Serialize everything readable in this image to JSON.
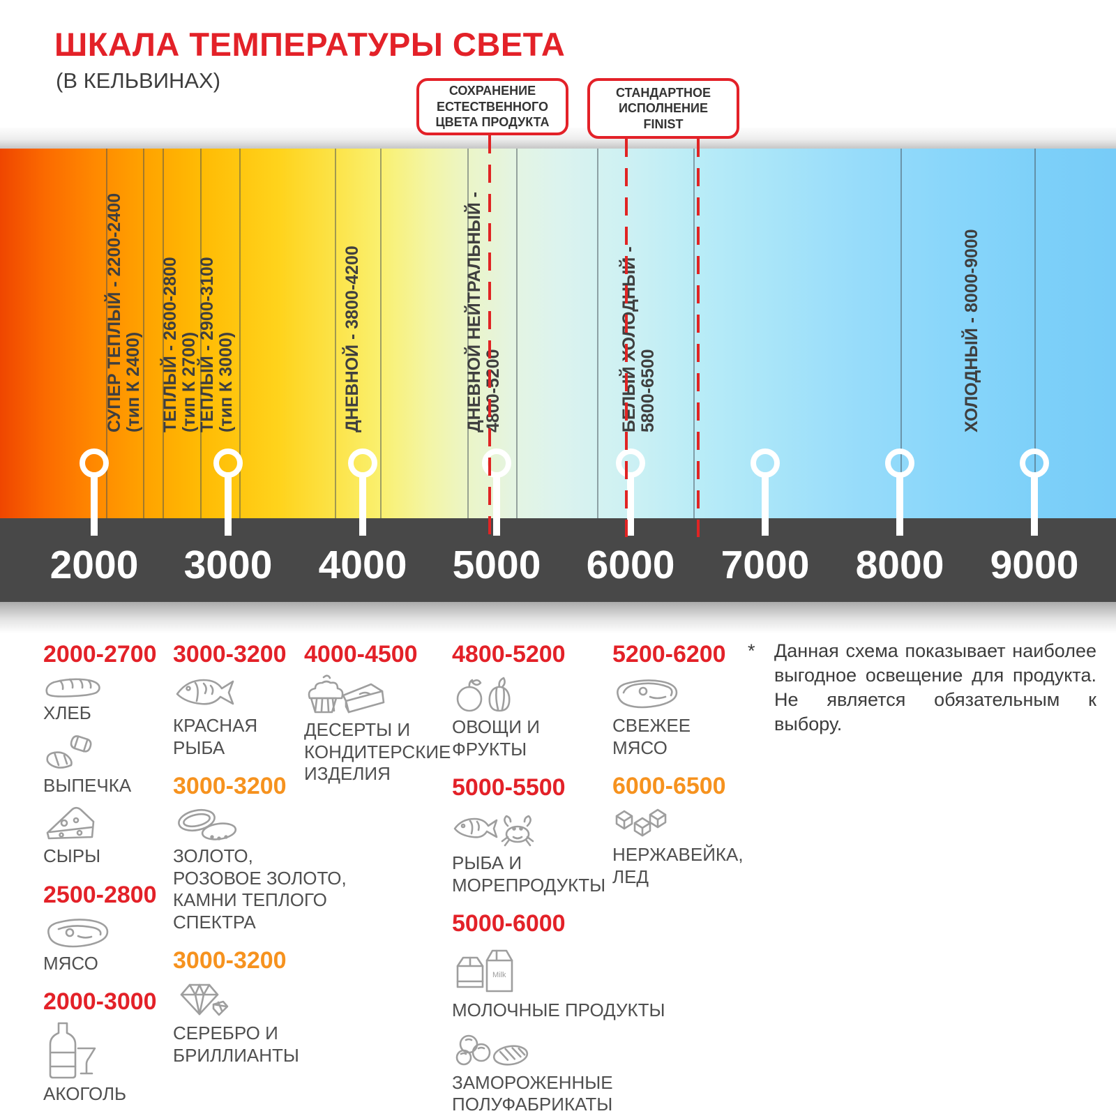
{
  "header": {
    "title": "ШКАЛА ТЕМПЕРАТУРЫ СВЕТА",
    "subtitle": "(В КЕЛЬВИНАХ)"
  },
  "callouts": [
    {
      "text": "СОХРАНЕНИЕ\nЕСТЕСТВЕННОГО\nЦВЕТА ПРОДУКТА"
    },
    {
      "text": "СТАНДАРТНОЕ\nИСПОЛНЕНИЕ\nFINIST"
    }
  ],
  "scale": {
    "unit": "Кельвины",
    "ticks": [
      "2000",
      "3000",
      "4000",
      "5000",
      "6000",
      "7000",
      "8000",
      "9000"
    ],
    "zones": [
      {
        "name": "СУПЕР ТЕПЛЫЙ - 2200-2400",
        "type": "(тип К 2400)"
      },
      {
        "name": "ТЕПЛЫЙ - 2600-2800",
        "type": "(тип К 2700)"
      },
      {
        "name": "ТЕПЛЫЙ - 2900-3100",
        "type": "(тип К 3000)"
      },
      {
        "name": "ДНЕВНОЙ - 3800-4200",
        "type": ""
      },
      {
        "name": "ДНЕВНОЙ НЕЙТРАЛЬНЫЙ -",
        "type": "4800-5200"
      },
      {
        "name": "БЕЛЫЙ ХОЛОДНЫЙ -",
        "type": "5800-6500"
      },
      {
        "name": "ХОЛОДНЫЙ - 8000-9000",
        "type": ""
      }
    ]
  },
  "colors": {
    "red": "#e32128",
    "orange": "#f6921e",
    "axis_bar": "#484848"
  },
  "columns": [
    {
      "groups": [
        {
          "range": "2000-2700",
          "color": "red",
          "items": [
            {
              "icon": "bread-icon",
              "label": "ХЛЕБ"
            },
            {
              "icon": "croissant-icon",
              "label": "ВЫПЕЧКА"
            },
            {
              "icon": "cheese-icon",
              "label": "СЫРЫ"
            }
          ]
        },
        {
          "range": "2500-2800",
          "color": "red",
          "items": [
            {
              "icon": "meat-icon",
              "label": "МЯСО"
            }
          ]
        },
        {
          "range": "2000-3000",
          "color": "red",
          "items": [
            {
              "icon": "alcohol-icon",
              "label": "АКОГОЛЬ"
            }
          ]
        }
      ]
    },
    {
      "groups": [
        {
          "range": "3000-3200",
          "color": "red",
          "items": [
            {
              "icon": "fish-icon",
              "label": "КРАСНАЯ\nРЫБА"
            }
          ]
        },
        {
          "range": "3000-3200",
          "color": "orange",
          "items": [
            {
              "icon": "rings-icon",
              "label": "ЗОЛОТО,\nРОЗОВОЕ ЗОЛОТО,\nКАМНИ ТЕПЛОГО\nСПЕКТРА"
            }
          ]
        },
        {
          "range": "3000-3200",
          "color": "orange",
          "items": [
            {
              "icon": "diamond-icon",
              "label": "СЕРЕБРО И\nБРИЛЛИАНТЫ"
            }
          ]
        }
      ]
    },
    {
      "groups": [
        {
          "range": "4000-4500",
          "color": "red",
          "items": [
            {
              "icon": "dessert-icon",
              "label": "ДЕСЕРТЫ И\nКОНДИТЕРСКИЕ\nИЗДЕЛИЯ"
            }
          ]
        }
      ]
    },
    {
      "groups": [
        {
          "range": "4800-5200",
          "color": "red",
          "items": [
            {
              "icon": "vegetables-icon",
              "label": "ОВОЩИ И\nФРУКТЫ"
            }
          ]
        },
        {
          "range": "5000-5500",
          "color": "red",
          "items": [
            {
              "icon": "seafood-icon",
              "label": "РЫБА И\nМОРЕПРОДУКТЫ"
            }
          ]
        },
        {
          "range": "5000-6000",
          "color": "red",
          "items": [
            {
              "icon": "milk-icon",
              "label": "МОЛОЧНЫЕ ПРОДУКТЫ"
            },
            {
              "icon": "frozen-icon",
              "label": "ЗАМОРОЖЕННЫЕ\nПОЛУФАБРИКАТЫ"
            }
          ]
        }
      ]
    },
    {
      "groups": [
        {
          "range": "5200-6200",
          "color": "red",
          "items": [
            {
              "icon": "fresh-meat-icon",
              "label": "СВЕЖЕЕ\nМЯСО"
            }
          ]
        },
        {
          "range": "6000-6500",
          "color": "orange",
          "items": [
            {
              "icon": "ice-icon",
              "label": "НЕРЖАВЕЙКА,\nЛЕД"
            }
          ]
        }
      ]
    }
  ],
  "footnote": {
    "marker": "*",
    "text": "Данная схема показывает наиболее выгодное освещение для продукта. Не является обязательным к выбору."
  }
}
